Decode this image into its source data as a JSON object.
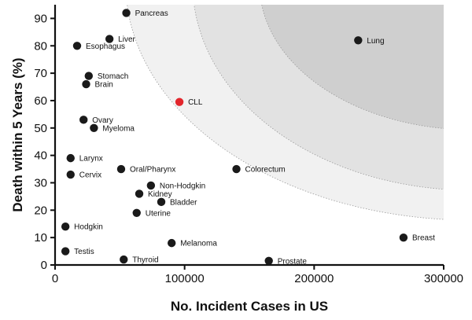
{
  "chart_data": {
    "type": "scatter",
    "xlabel": "No. Incident Cases in US",
    "ylabel": "Death within 5 Years (%)",
    "xlim": [
      0,
      300000
    ],
    "ylim": [
      0,
      95
    ],
    "x_ticks": [
      0,
      100000,
      200000,
      300000
    ],
    "x_tick_labels": [
      "0",
      "100000",
      "200000",
      "300000"
    ],
    "y_ticks": [
      0,
      10,
      20,
      30,
      40,
      50,
      60,
      70,
      80,
      90
    ],
    "y_tick_labels": [
      "0",
      "10",
      "20",
      "30",
      "40",
      "50",
      "60",
      "70",
      "80",
      "90"
    ],
    "grid": false,
    "points": [
      {
        "label": "Pancreas",
        "x": 55000,
        "y": 92,
        "color": "#1a1a1a"
      },
      {
        "label": "Liver",
        "x": 42000,
        "y": 82.5,
        "color": "#1a1a1a"
      },
      {
        "label": "Esophagus",
        "x": 17000,
        "y": 80,
        "color": "#1a1a1a"
      },
      {
        "label": "Lung",
        "x": 234000,
        "y": 82,
        "color": "#1a1a1a"
      },
      {
        "label": "Stomach",
        "x": 26000,
        "y": 69,
        "color": "#1a1a1a"
      },
      {
        "label": "Brain",
        "x": 24000,
        "y": 66,
        "color": "#1a1a1a"
      },
      {
        "label": "CLL",
        "x": 96000,
        "y": 59.5,
        "color": "#e2252b"
      },
      {
        "label": "Ovary",
        "x": 22000,
        "y": 53,
        "color": "#1a1a1a"
      },
      {
        "label": "Myeloma",
        "x": 30000,
        "y": 50,
        "color": "#1a1a1a"
      },
      {
        "label": "Larynx",
        "x": 12000,
        "y": 39,
        "color": "#1a1a1a"
      },
      {
        "label": "Oral/Pharynx",
        "x": 51000,
        "y": 35,
        "color": "#1a1a1a"
      },
      {
        "label": "Colorectum",
        "x": 140000,
        "y": 35,
        "color": "#1a1a1a"
      },
      {
        "label": "Cervix",
        "x": 12000,
        "y": 33,
        "color": "#1a1a1a"
      },
      {
        "label": "Non-Hodgkin",
        "x": 74000,
        "y": 29,
        "color": "#1a1a1a"
      },
      {
        "label": "Kidney",
        "x": 65000,
        "y": 26,
        "color": "#1a1a1a"
      },
      {
        "label": "Bladder",
        "x": 82000,
        "y": 23,
        "color": "#1a1a1a"
      },
      {
        "label": "Uterine",
        "x": 63000,
        "y": 19,
        "color": "#1a1a1a"
      },
      {
        "label": "Hodgkin",
        "x": 8000,
        "y": 14,
        "color": "#1a1a1a"
      },
      {
        "label": "Breast",
        "x": 269000,
        "y": 10,
        "color": "#1a1a1a"
      },
      {
        "label": "Melanoma",
        "x": 90000,
        "y": 8,
        "color": "#1a1a1a"
      },
      {
        "label": "Testis",
        "x": 8000,
        "y": 5,
        "color": "#1a1a1a"
      },
      {
        "label": "Thyroid",
        "x": 53000,
        "y": 2,
        "color": "#1a1a1a"
      },
      {
        "label": "Prostate",
        "x": 165000,
        "y": 1.5,
        "color": "#1a1a1a"
      }
    ],
    "background_zones": [
      {
        "shade": "light",
        "color": "#f1f1f1"
      },
      {
        "shade": "medium",
        "color": "#e2e2e2"
      },
      {
        "shade": "dark",
        "color": "#cfcfcf"
      }
    ]
  }
}
